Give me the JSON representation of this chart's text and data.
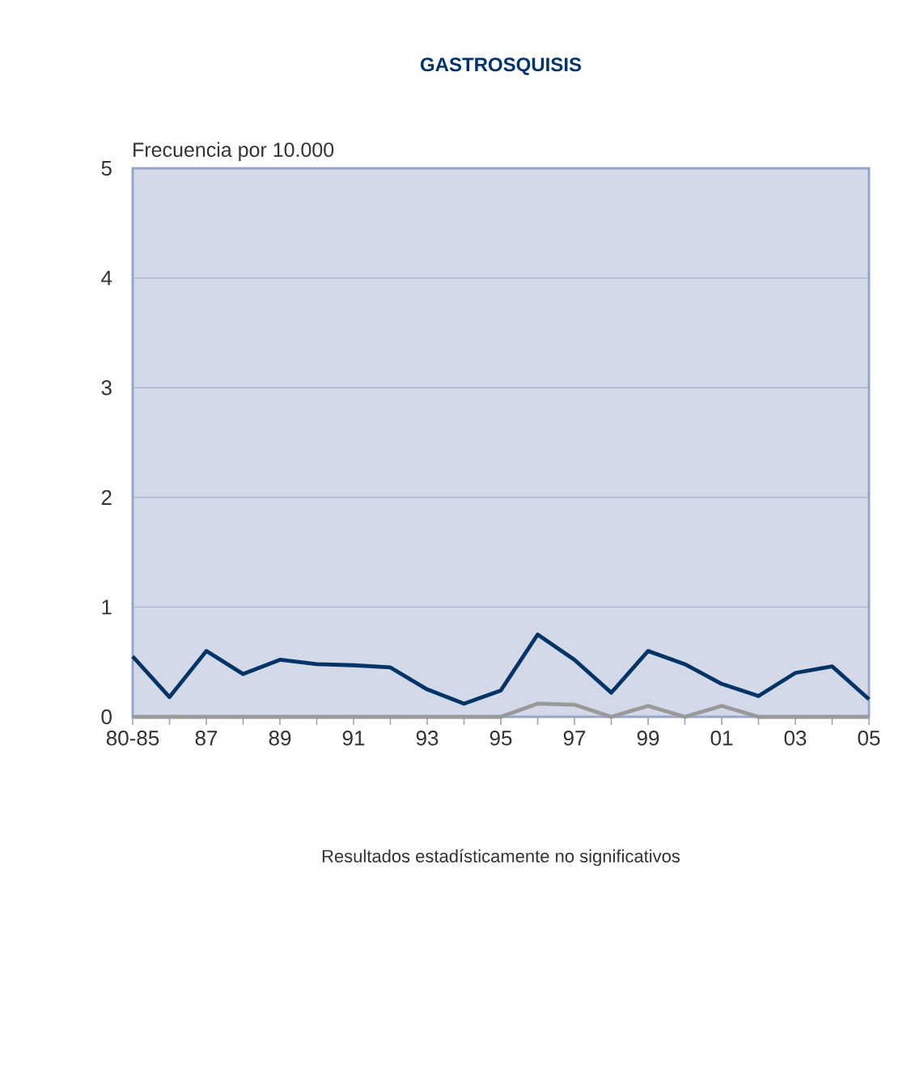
{
  "chart_data": {
    "type": "line",
    "title": "GASTROSQUISIS",
    "ylabel": "Frecuencia por 10.000",
    "categories": [
      "80-85",
      null,
      "87",
      null,
      "89",
      null,
      "91",
      null,
      "93",
      null,
      "95",
      null,
      "97",
      null,
      "99",
      null,
      "01",
      null,
      "03",
      null,
      "05"
    ],
    "series": [
      {
        "color": "#003366",
        "values": [
          0.55,
          0.18,
          0.6,
          0.39,
          0.52,
          0.48,
          0.47,
          0.45,
          0.25,
          0.12,
          0.24,
          0.75,
          0.52,
          0.22,
          0.6,
          0.48,
          0.3,
          0.19,
          0.4,
          0.46,
          0.16
        ]
      },
      {
        "color": "#999999",
        "values": [
          0,
          0,
          0,
          0,
          0,
          0,
          0,
          0,
          0,
          0,
          0,
          0.12,
          0.11,
          0,
          0.1,
          0,
          0.1,
          0,
          0,
          0,
          0
        ]
      }
    ],
    "ylim": [
      0,
      5
    ],
    "yticks": [
      0,
      1,
      2,
      3,
      4,
      5
    ],
    "grid": "y",
    "marker": "none",
    "line_style": "solid",
    "annotations": [
      "Resultados estadísticamente no significativos"
    ]
  }
}
